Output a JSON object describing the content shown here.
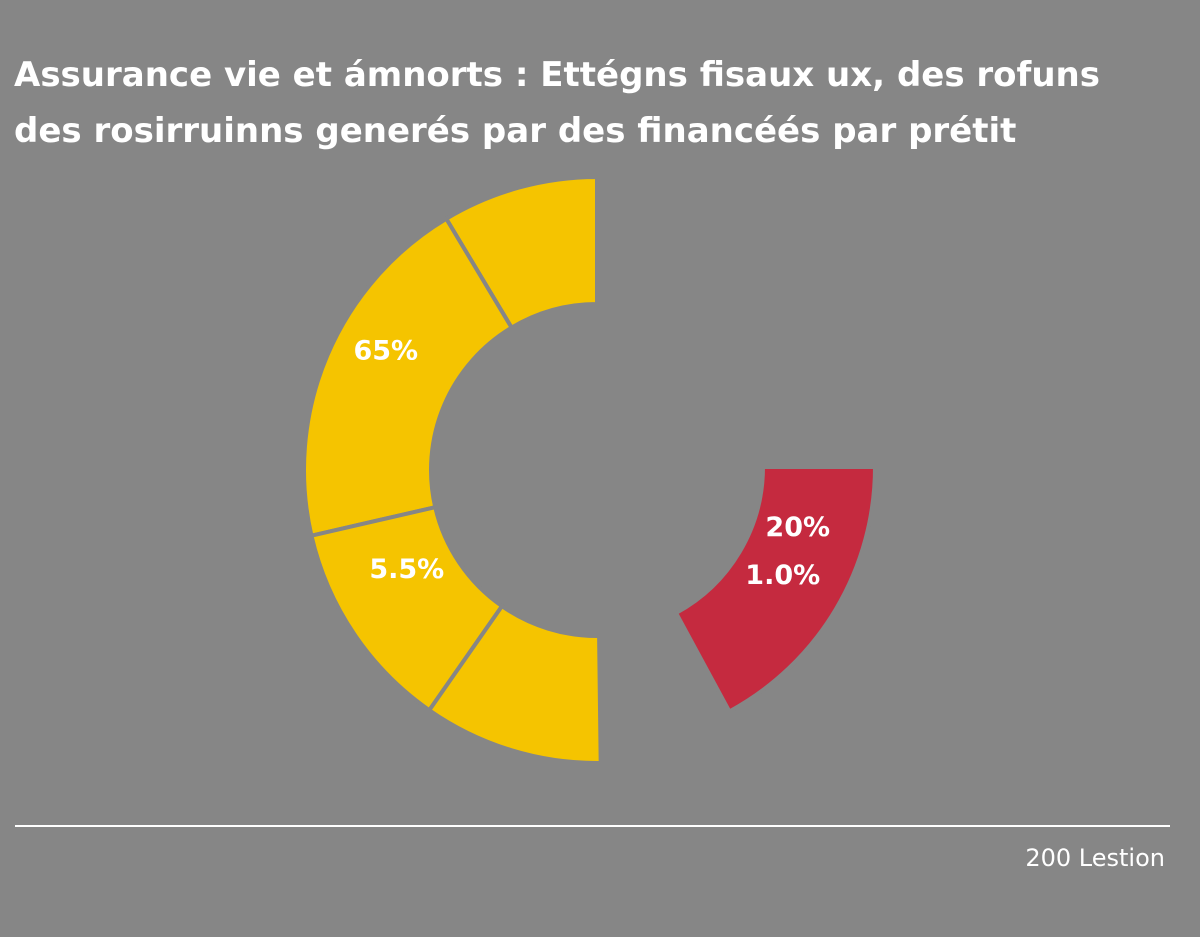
{
  "chart_data": {
    "type": "donut",
    "title": [
      "Assurance vie et ámnorts : Ettégns fisaux ux, des rofuns",
      "des rosirruinns generés par des financéés par prétit"
    ],
    "segments": [
      {
        "value": 8.6,
        "color": "#f5c400"
      },
      {
        "value": 20,
        "color": "#f5c400",
        "labels": [
          "65%"
        ]
      },
      {
        "value": 11.7,
        "color": "#f5c400",
        "labels": [
          "5.5%"
        ]
      },
      {
        "value": 9.9,
        "color": "#f5c400"
      },
      {
        "value": 17.1,
        "color": "#c52a3f",
        "labels": [
          "20%",
          "1.0%"
        ]
      }
    ],
    "source": "200 Lestion"
  }
}
